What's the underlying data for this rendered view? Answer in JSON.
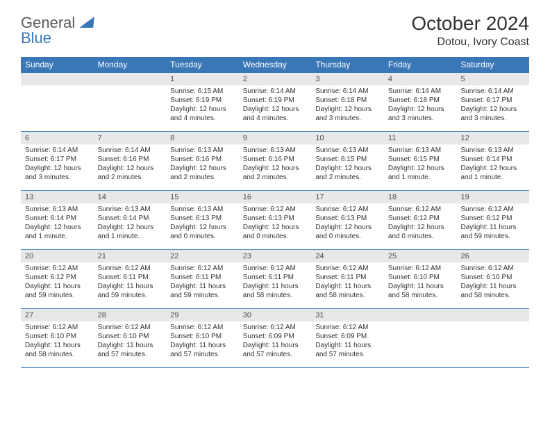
{
  "colors": {
    "brand_blue": "#3a77b7",
    "text_gray": "#333333",
    "bar_gray": "#e7e8ea",
    "logo_gray": "#5a5a5a",
    "white": "#ffffff"
  },
  "logo": {
    "word1": "General",
    "word2": "Blue"
  },
  "header": {
    "title": "October 2024",
    "location": "Dotou, Ivory Coast"
  },
  "dow": [
    "Sunday",
    "Monday",
    "Tuesday",
    "Wednesday",
    "Thursday",
    "Friday",
    "Saturday"
  ],
  "weeks": [
    [
      null,
      null,
      {
        "n": "1",
        "sr": "6:15 AM",
        "ss": "6:19 PM",
        "dl": "12 hours and 4 minutes."
      },
      {
        "n": "2",
        "sr": "6:14 AM",
        "ss": "6:19 PM",
        "dl": "12 hours and 4 minutes."
      },
      {
        "n": "3",
        "sr": "6:14 AM",
        "ss": "6:18 PM",
        "dl": "12 hours and 3 minutes."
      },
      {
        "n": "4",
        "sr": "6:14 AM",
        "ss": "6:18 PM",
        "dl": "12 hours and 3 minutes."
      },
      {
        "n": "5",
        "sr": "6:14 AM",
        "ss": "6:17 PM",
        "dl": "12 hours and 3 minutes."
      }
    ],
    [
      {
        "n": "6",
        "sr": "6:14 AM",
        "ss": "6:17 PM",
        "dl": "12 hours and 3 minutes."
      },
      {
        "n": "7",
        "sr": "6:14 AM",
        "ss": "6:16 PM",
        "dl": "12 hours and 2 minutes."
      },
      {
        "n": "8",
        "sr": "6:13 AM",
        "ss": "6:16 PM",
        "dl": "12 hours and 2 minutes."
      },
      {
        "n": "9",
        "sr": "6:13 AM",
        "ss": "6:16 PM",
        "dl": "12 hours and 2 minutes."
      },
      {
        "n": "10",
        "sr": "6:13 AM",
        "ss": "6:15 PM",
        "dl": "12 hours and 2 minutes."
      },
      {
        "n": "11",
        "sr": "6:13 AM",
        "ss": "6:15 PM",
        "dl": "12 hours and 1 minute."
      },
      {
        "n": "12",
        "sr": "6:13 AM",
        "ss": "6:14 PM",
        "dl": "12 hours and 1 minute."
      }
    ],
    [
      {
        "n": "13",
        "sr": "6:13 AM",
        "ss": "6:14 PM",
        "dl": "12 hours and 1 minute."
      },
      {
        "n": "14",
        "sr": "6:13 AM",
        "ss": "6:14 PM",
        "dl": "12 hours and 1 minute."
      },
      {
        "n": "15",
        "sr": "6:13 AM",
        "ss": "6:13 PM",
        "dl": "12 hours and 0 minutes."
      },
      {
        "n": "16",
        "sr": "6:12 AM",
        "ss": "6:13 PM",
        "dl": "12 hours and 0 minutes."
      },
      {
        "n": "17",
        "sr": "6:12 AM",
        "ss": "6:13 PM",
        "dl": "12 hours and 0 minutes."
      },
      {
        "n": "18",
        "sr": "6:12 AM",
        "ss": "6:12 PM",
        "dl": "12 hours and 0 minutes."
      },
      {
        "n": "19",
        "sr": "6:12 AM",
        "ss": "6:12 PM",
        "dl": "11 hours and 59 minutes."
      }
    ],
    [
      {
        "n": "20",
        "sr": "6:12 AM",
        "ss": "6:12 PM",
        "dl": "11 hours and 59 minutes."
      },
      {
        "n": "21",
        "sr": "6:12 AM",
        "ss": "6:11 PM",
        "dl": "11 hours and 59 minutes."
      },
      {
        "n": "22",
        "sr": "6:12 AM",
        "ss": "6:11 PM",
        "dl": "11 hours and 59 minutes."
      },
      {
        "n": "23",
        "sr": "6:12 AM",
        "ss": "6:11 PM",
        "dl": "11 hours and 58 minutes."
      },
      {
        "n": "24",
        "sr": "6:12 AM",
        "ss": "6:11 PM",
        "dl": "11 hours and 58 minutes."
      },
      {
        "n": "25",
        "sr": "6:12 AM",
        "ss": "6:10 PM",
        "dl": "11 hours and 58 minutes."
      },
      {
        "n": "26",
        "sr": "6:12 AM",
        "ss": "6:10 PM",
        "dl": "11 hours and 58 minutes."
      }
    ],
    [
      {
        "n": "27",
        "sr": "6:12 AM",
        "ss": "6:10 PM",
        "dl": "11 hours and 58 minutes."
      },
      {
        "n": "28",
        "sr": "6:12 AM",
        "ss": "6:10 PM",
        "dl": "11 hours and 57 minutes."
      },
      {
        "n": "29",
        "sr": "6:12 AM",
        "ss": "6:10 PM",
        "dl": "11 hours and 57 minutes."
      },
      {
        "n": "30",
        "sr": "6:12 AM",
        "ss": "6:09 PM",
        "dl": "11 hours and 57 minutes."
      },
      {
        "n": "31",
        "sr": "6:12 AM",
        "ss": "6:09 PM",
        "dl": "11 hours and 57 minutes."
      },
      null,
      null
    ]
  ],
  "labels": {
    "sunrise": "Sunrise: ",
    "sunset": "Sunset: ",
    "daylight": "Daylight: "
  }
}
